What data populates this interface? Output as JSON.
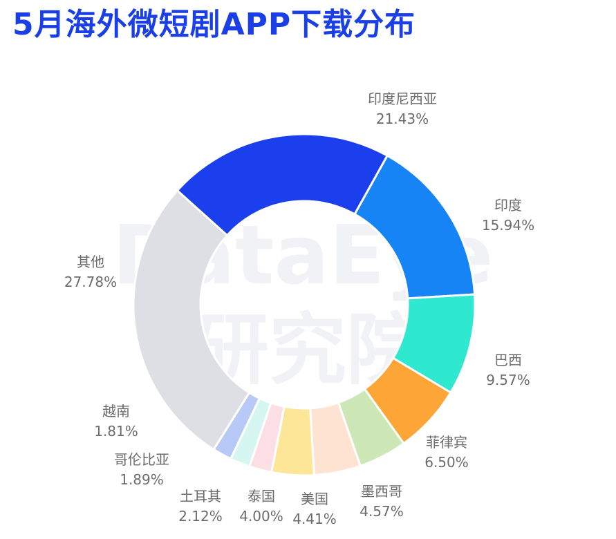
{
  "title": "5月海外微短剧APP下载分布",
  "watermark": {
    "line1": "DataEye",
    "line2": "研究院"
  },
  "chart_data": {
    "type": "pie",
    "donut": true,
    "title": "5月海外微短剧APP下载分布",
    "unit": "%",
    "slices": [
      {
        "name": "印度尼西亚",
        "label": "21.43%",
        "value": 21.43,
        "color": "#1b3fec"
      },
      {
        "name": "印度",
        "label": "15.94%",
        "value": 15.94,
        "color": "#1784f6"
      },
      {
        "name": "巴西",
        "label": "9.57%",
        "value": 9.57,
        "color": "#2ee8cf"
      },
      {
        "name": "菲律宾",
        "label": "6.50%",
        "value": 6.5,
        "color": "#fda536"
      },
      {
        "name": "墨西哥",
        "label": "4.57%",
        "value": 4.57,
        "color": "#cde7b6"
      },
      {
        "name": "美国",
        "label": "4.41%",
        "value": 4.41,
        "color": "#ffe3d2"
      },
      {
        "name": "泰国",
        "label": "4.00%",
        "value": 4.0,
        "color": "#fde698"
      },
      {
        "name": "土耳其",
        "label": "2.12%",
        "value": 2.12,
        "color": "#fcdfe4"
      },
      {
        "name": "哥伦比亚",
        "label": "1.89%",
        "value": 1.89,
        "color": "#d6f6f1"
      },
      {
        "name": "越南",
        "label": "1.81%",
        "value": 1.81,
        "color": "#b8c9f8"
      },
      {
        "name": "其他",
        "label": "27.78%",
        "value": 27.78,
        "color": "#dedfe4"
      }
    ]
  }
}
